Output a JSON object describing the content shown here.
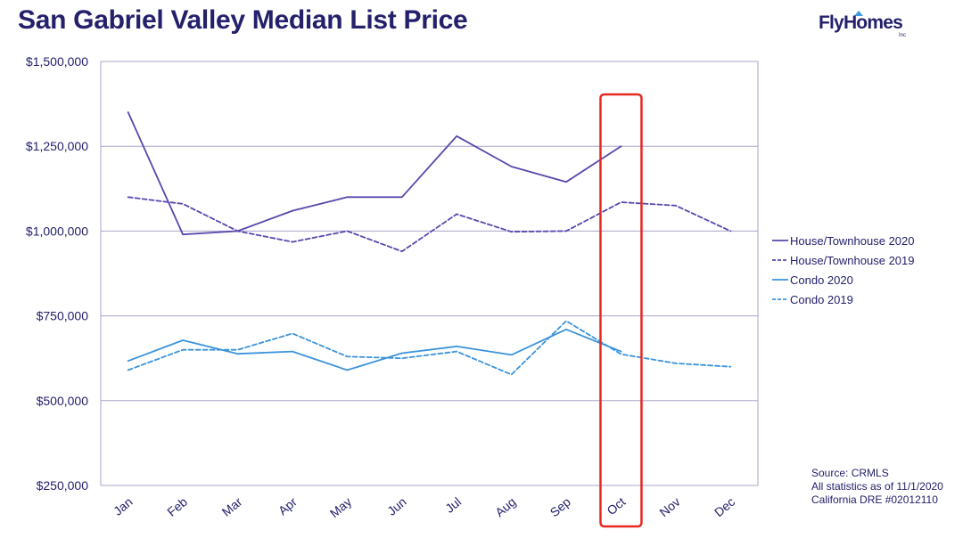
{
  "title": "San Gabriel Valley Median List Price",
  "logo": {
    "text": "FlyHomes",
    "sub": "Inc"
  },
  "source": {
    "line1": "Source: CRMLS",
    "line2": "All statistics as of 11/1/2020",
    "line3": "California DRE #02012110"
  },
  "colors": {
    "house": "#5b46ad",
    "condo": "#3b93dc",
    "grid": "#a8a4c8",
    "axis_text": "#24206b",
    "highlight": "#e8271e"
  },
  "chart_data": {
    "type": "line",
    "categories": [
      "Jan",
      "Feb",
      "Mar",
      "Apr",
      "May",
      "Jun",
      "Jul",
      "Aug",
      "Sep",
      "Oct",
      "Nov",
      "Dec"
    ],
    "ylim": [
      250000,
      1500000
    ],
    "yticks": [
      250000,
      500000,
      750000,
      1000000,
      1250000,
      1500000
    ],
    "ytick_labels": [
      "$250,000",
      "$500,000",
      "$750,000",
      "$1,000,000",
      "$1,250,000",
      "$1,500,000"
    ],
    "grid": true,
    "legend_position": "right",
    "highlight_category": "Oct",
    "series": [
      {
        "name": "House/Townhouse 2020",
        "color_key": "house",
        "dashed": false,
        "values": [
          1350000,
          990000,
          1000000,
          1060000,
          1100000,
          1100000,
          1280000,
          1190000,
          1145000,
          1250000,
          null,
          null
        ]
      },
      {
        "name": "House/Townhouse 2019",
        "color_key": "house",
        "dashed": true,
        "values": [
          1100000,
          1080000,
          1000000,
          968000,
          1000000,
          940000,
          1050000,
          998000,
          1000000,
          1085000,
          1075000,
          1000000
        ]
      },
      {
        "name": "Condo 2020",
        "color_key": "condo",
        "dashed": false,
        "values": [
          617000,
          678000,
          638000,
          645000,
          590000,
          640000,
          660000,
          635000,
          710000,
          645000,
          null,
          null
        ]
      },
      {
        "name": "Condo 2019",
        "color_key": "condo",
        "dashed": true,
        "values": [
          590000,
          650000,
          650000,
          698000,
          630000,
          625000,
          645000,
          577000,
          735000,
          637000,
          610000,
          600000
        ]
      }
    ]
  }
}
